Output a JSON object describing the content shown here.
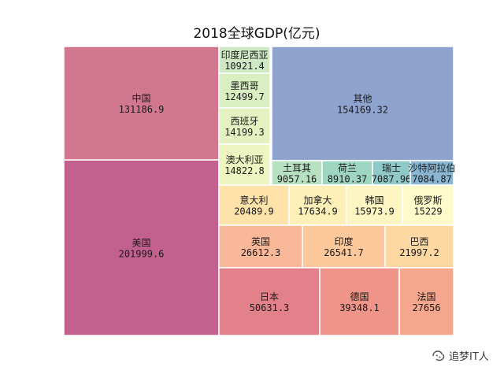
{
  "chart_data": {
    "type": "treemap",
    "title": "2018全球GDP(亿元)",
    "items": [
      {
        "name": "美国",
        "value": 201999.6,
        "label": "201999.6",
        "color": "#c2618e"
      },
      {
        "name": "中国",
        "value": 131186.9,
        "label": "131186.9",
        "color": "#d17890"
      },
      {
        "name": "印度尼西亚",
        "value": 10921.4,
        "label": "10921.4",
        "color": "#cfe9c4"
      },
      {
        "name": "墨西哥",
        "value": 12499.7,
        "label": "12499.7",
        "color": "#d9efc2"
      },
      {
        "name": "西班牙",
        "value": 14199.3,
        "label": "14199.3",
        "color": "#e3f2c0"
      },
      {
        "name": "澳大利亚",
        "value": 14822.8,
        "label": "14822.8",
        "color": "#edf5c0"
      },
      {
        "name": "其他",
        "value": 154169.32,
        "label": "154169.32",
        "color": "#8fa3cf"
      },
      {
        "name": "土耳其",
        "value": 9057.16,
        "label": "9057.16",
        "color": "#b7e1c0"
      },
      {
        "name": "荷兰",
        "value": 8910.37,
        "label": "8910.37",
        "color": "#9fd6c2"
      },
      {
        "name": "瑞士",
        "value": 7087.96,
        "label": "7087.96",
        "color": "#8fcac9"
      },
      {
        "name": "沙特阿拉伯",
        "value": 7084.87,
        "label": "7084.87",
        "color": "#8ab6d2"
      },
      {
        "name": "意大利",
        "value": 20489.9,
        "label": "20489.9",
        "color": "#fde2aa"
      },
      {
        "name": "加拿大",
        "value": 17634.9,
        "label": "17634.9",
        "color": "#fef0b8"
      },
      {
        "name": "韩国",
        "value": 15973.9,
        "label": "15973.9",
        "color": "#fef6c2"
      },
      {
        "name": "俄罗斯",
        "value": 15229,
        "label": "15229",
        "color": "#fefbcb"
      },
      {
        "name": "英国",
        "value": 26612.3,
        "label": "26612.3",
        "color": "#f9b898"
      },
      {
        "name": "印度",
        "value": 26541.7,
        "label": "26541.7",
        "color": "#fcc89c"
      },
      {
        "name": "巴西",
        "value": 21997.2,
        "label": "21997.2",
        "color": "#fdd7a2"
      },
      {
        "name": "日本",
        "value": 50631.3,
        "label": "50631.3",
        "color": "#e2818a"
      },
      {
        "name": "德国",
        "value": 39348.1,
        "label": "39348.1",
        "color": "#ee9489"
      },
      {
        "name": "法国",
        "value": 27656,
        "label": "27656",
        "color": "#f6a68c"
      }
    ]
  },
  "watermark": {
    "text": "追梦IT人",
    "icon": "wechat-official-icon"
  }
}
